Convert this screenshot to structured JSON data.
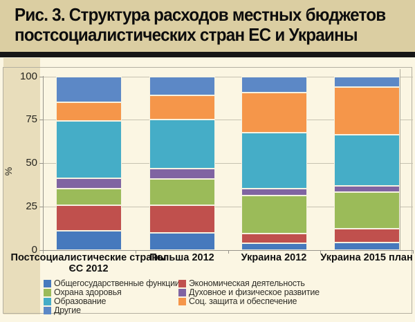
{
  "title": {
    "line1": "Рис. 3. Структура расходов местных бюджетов",
    "line2": "постсоциалистических стран ЕС и Украины"
  },
  "chart_data": {
    "type": "bar",
    "stacked": true,
    "title": "Структура расходов местных бюджетов постсоциалистических стран ЕС и Украины",
    "xlabel": "",
    "ylabel": "%",
    "ylim": [
      0,
      100
    ],
    "yticks": [
      0,
      25,
      50,
      75,
      100
    ],
    "grid": true,
    "legend_position": "bottom",
    "categories": [
      "Постсоциалистические страны ЄС 2012",
      "Польша 2012",
      "Украина 2012",
      "Украина 2015 план"
    ],
    "category_lines": [
      [
        "Постсоциалистические страны",
        "ЄС 2012"
      ],
      [
        "Польша 2012"
      ],
      [
        "Украина 2012"
      ],
      [
        "Украина 2015 план"
      ]
    ],
    "series": [
      {
        "name": "Общегосударственные функции",
        "color": "#4679BD",
        "values": [
          11,
          10,
          4,
          4.5
        ]
      },
      {
        "name": "Экономическая деятельность",
        "color": "#C0504D",
        "values": [
          15,
          16,
          5.5,
          8
        ]
      },
      {
        "name": "Охрана здоровья",
        "color": "#9BBB59",
        "values": [
          9.5,
          15,
          22,
          21
        ]
      },
      {
        "name": "Духовное и физическое развитие",
        "color": "#8064A2",
        "values": [
          6,
          6,
          4,
          3.5
        ]
      },
      {
        "name": "Образование",
        "color": "#45ADC7",
        "values": [
          33,
          28,
          32,
          29.5
        ]
      },
      {
        "name": "Соц. защита и обеспечение",
        "color": "#F5964A",
        "values": [
          10.5,
          14,
          23,
          27.5
        ]
      },
      {
        "name": "Другие",
        "color": "#5C88C6",
        "values": [
          15,
          11,
          9.5,
          6
        ]
      }
    ],
    "legend_columns": [
      [
        0,
        2,
        4,
        6
      ],
      [
        1,
        3,
        5
      ]
    ]
  },
  "colors": {
    "page_background": "#FBF6E3",
    "title_background": "#DBCEA2",
    "divider": "#161616",
    "left_strip": "#E8DDBB",
    "gridline": "#C6C2B1"
  }
}
